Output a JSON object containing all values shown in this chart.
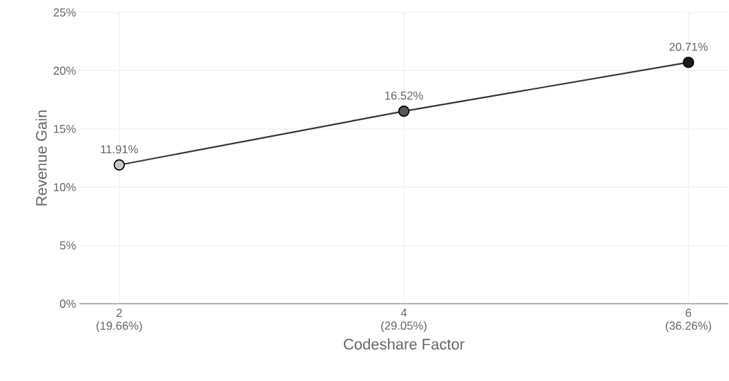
{
  "chart_data": {
    "type": "line",
    "xlabel": "Codeshare Factor",
    "ylabel": "Revenue Gain",
    "categories": [
      "2 (19.66%)",
      "4 (29.05%)",
      "6 (36.26%)"
    ],
    "values": [
      11.91,
      16.52,
      20.71
    ],
    "value_labels": [
      "11.91%",
      "16.52%",
      "20.71%"
    ],
    "color": "#333333",
    "colors": [
      "#c8c8c8",
      "#555555",
      "#1a1a1a"
    ],
    "ylim": [
      0,
      25
    ],
    "yticks": [
      {
        "value": 0,
        "label": "0%"
      },
      {
        "value": 5,
        "label": "5%"
      },
      {
        "value": 10,
        "label": "10%"
      },
      {
        "value": 15,
        "label": "15%"
      },
      {
        "value": 20,
        "label": "20%"
      },
      {
        "value": 25,
        "label": "25%"
      }
    ],
    "grid": true,
    "marker": "circle",
    "line_style": "solid"
  }
}
